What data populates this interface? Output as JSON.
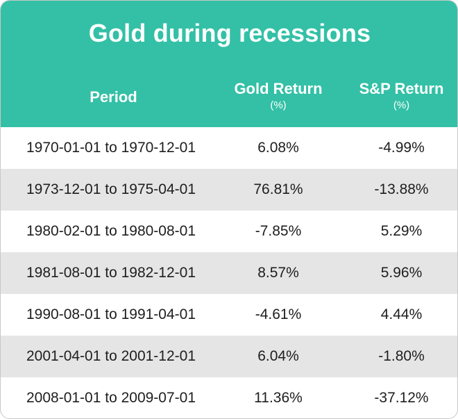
{
  "chart_data": {
    "type": "table",
    "title": "Gold during recessions",
    "columns": [
      {
        "label": "Period",
        "sub": ""
      },
      {
        "label": "Gold Return",
        "sub": "(%)"
      },
      {
        "label": "S&P Return",
        "sub": "(%)"
      }
    ],
    "rows": [
      {
        "period": "1970-01-01 to 1970-12-01",
        "gold": "6.08%",
        "sp": "-4.99%"
      },
      {
        "period": "1973-12-01 to 1975-04-01",
        "gold": "76.81%",
        "sp": "-13.88%"
      },
      {
        "period": "1980-02-01 to 1980-08-01",
        "gold": "-7.85%",
        "sp": "5.29%"
      },
      {
        "period": "1981-08-01 to 1982-12-01",
        "gold": "8.57%",
        "sp": "5.96%"
      },
      {
        "period": "1990-08-01 to 1991-04-01",
        "gold": "-4.61%",
        "sp": "4.44%"
      },
      {
        "period": "2001-04-01 to 2001-12-01",
        "gold": "6.04%",
        "sp": "-1.80%"
      },
      {
        "period": "2008-01-01 to 2009-07-01",
        "gold": "11.36%",
        "sp": "-37.12%"
      }
    ],
    "colors": {
      "header": "#33c0a6",
      "alt_row": "#e5e5e5"
    }
  }
}
